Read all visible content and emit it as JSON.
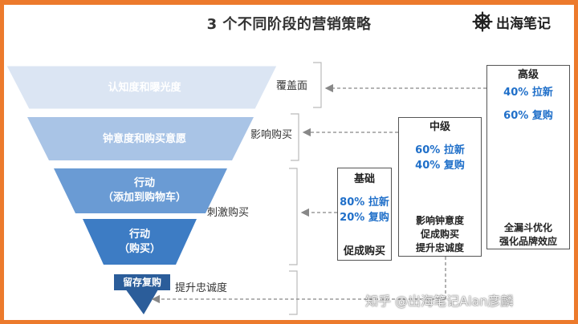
{
  "title": "3 个不同阶段的营销策略",
  "logo": {
    "text": "出海笔记",
    "icon": "ship-wheel-icon"
  },
  "funnel": {
    "layers": [
      {
        "lines": [
          "认知度和曝光度"
        ],
        "color": "#dbe5f3"
      },
      {
        "lines": [
          "钟意度和购买意愿"
        ],
        "color": "#a9c4e6"
      },
      {
        "lines": [
          "行动",
          "（添加到购物车）"
        ],
        "color": "#6a9bd4"
      },
      {
        "lines": [
          "行动",
          "（购买）"
        ],
        "color": "#3d7cc4"
      },
      {
        "lines": [
          "留存复购"
        ],
        "color": "#2b5d9a"
      }
    ]
  },
  "arrows": {
    "coverage": "覆盖面",
    "influence": "影响购买",
    "stimulate": "刺激购买",
    "loyalty": "提升忠诚度"
  },
  "levels": {
    "basic": {
      "title": "基础",
      "lines": [
        "80% 拉新",
        "20% 复购"
      ],
      "foot": [
        "促成购买"
      ]
    },
    "mid": {
      "title": "中级",
      "lines": [
        "60% 拉新",
        "40% 复购"
      ],
      "foot": [
        "影响钟意度",
        "促成购买",
        "提升忠诚度"
      ]
    },
    "high": {
      "title": "高级",
      "lines": [
        "40% 拉新",
        "60% 复购"
      ],
      "foot": [
        "全漏斗优化",
        "强化品牌效应"
      ]
    }
  },
  "watermark": "知乎 @出海笔记Alan彦麟",
  "colors": {
    "frame": "#ec7a2c",
    "accent": "#1f6fc9",
    "arrow": "#888888"
  }
}
